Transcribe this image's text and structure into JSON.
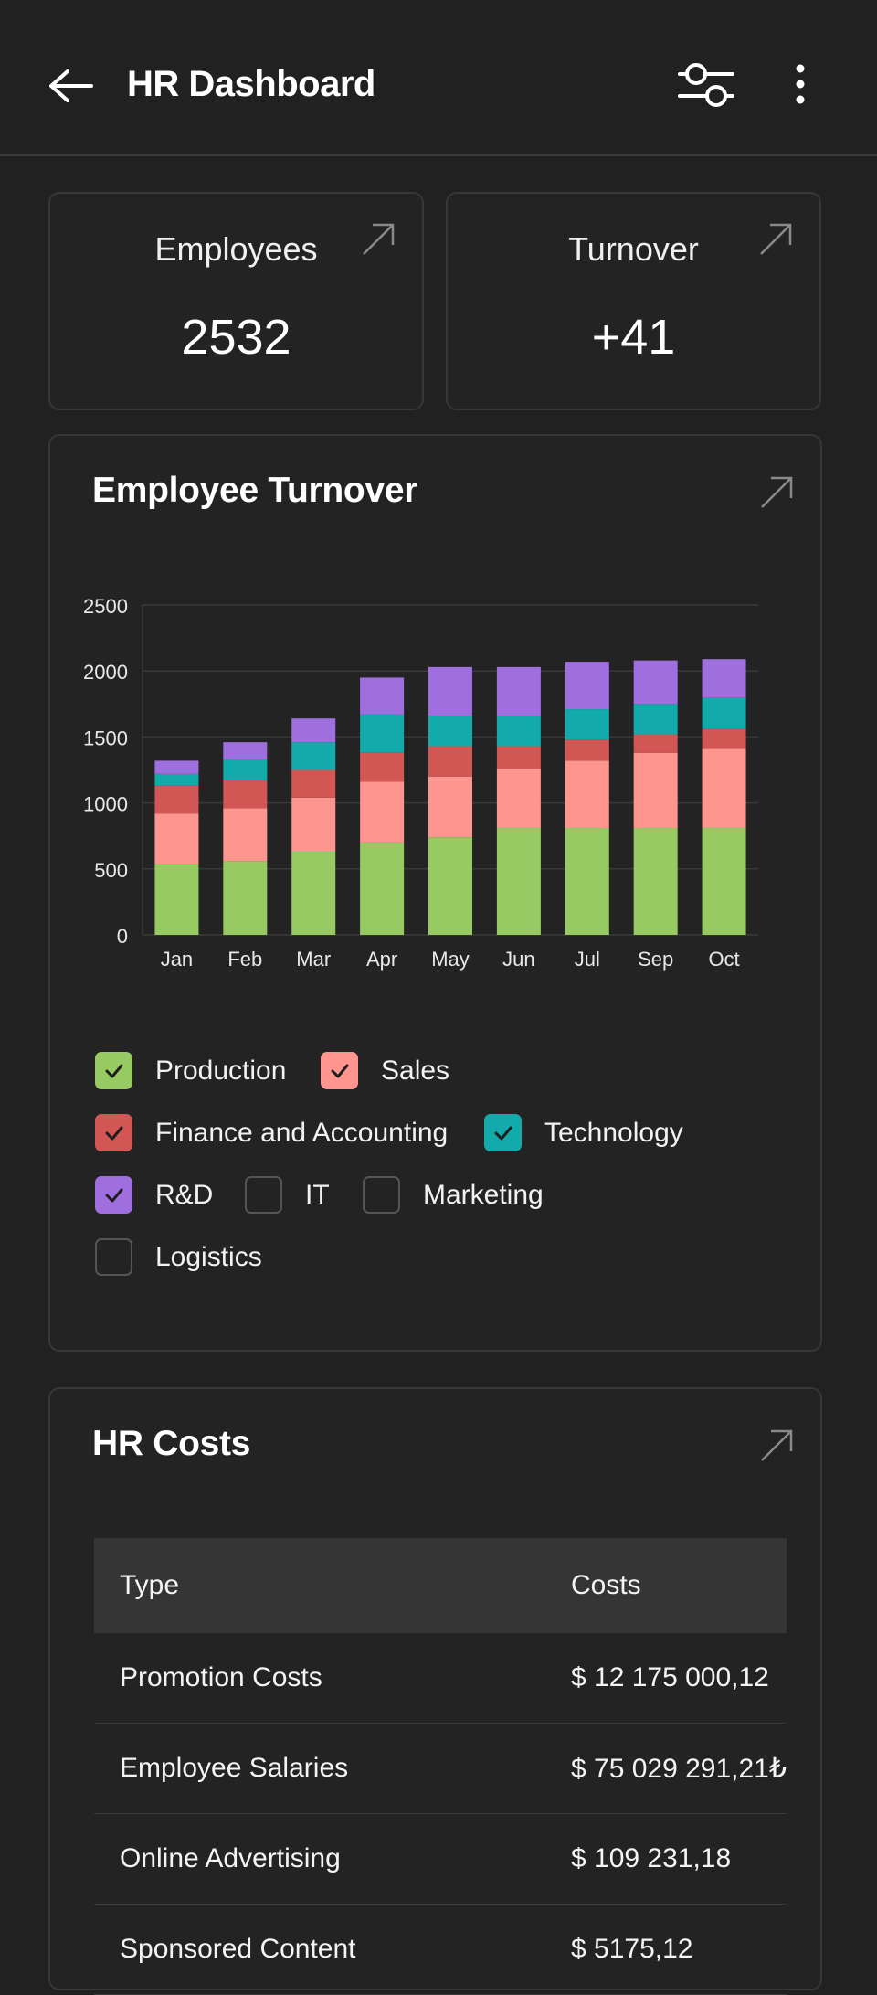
{
  "header": {
    "title": "HR Dashboard",
    "back_icon": "arrow-left-icon",
    "filter_icon": "sliders-icon",
    "more_icon": "more-vertical-icon"
  },
  "stats": [
    {
      "label": "Employees",
      "value": "2532"
    },
    {
      "label": "Turnover",
      "value": "+41"
    }
  ],
  "turnover_chart": {
    "title": "Employee Turnover"
  },
  "chart_data": {
    "type": "bar",
    "stacked": true,
    "title": "Employee Turnover",
    "categories": [
      "Jan",
      "Feb",
      "Mar",
      "Apr",
      "May",
      "Jun",
      "Jul",
      "Sep",
      "Oct"
    ],
    "ylim": [
      0,
      2500
    ],
    "yticks": [
      0,
      500,
      1000,
      1500,
      2000,
      2500
    ],
    "grid": true,
    "series": [
      {
        "name": "Production",
        "color": "#97ca62",
        "values": [
          540,
          560,
          630,
          700,
          740,
          810,
          810,
          810,
          810
        ]
      },
      {
        "name": "Sales",
        "color": "#ff958f",
        "values": [
          380,
          400,
          410,
          460,
          460,
          450,
          510,
          570,
          600
        ]
      },
      {
        "name": "Finance and Accounting",
        "color": "#d25654",
        "values": [
          210,
          210,
          210,
          220,
          230,
          170,
          160,
          140,
          150
        ]
      },
      {
        "name": "Technology",
        "color": "#13aaac",
        "values": [
          90,
          160,
          210,
          290,
          230,
          230,
          230,
          230,
          240
        ]
      },
      {
        "name": "R&D",
        "color": "#a06fdf",
        "values": [
          100,
          130,
          180,
          280,
          370,
          370,
          360,
          330,
          290
        ]
      }
    ]
  },
  "legend": {
    "items": [
      {
        "label": "Production",
        "checked": true,
        "color": "#97ca62"
      },
      {
        "label": "Sales",
        "checked": true,
        "color": "#ff958f"
      },
      {
        "label": "Finance and Accounting",
        "checked": true,
        "color": "#d25654"
      },
      {
        "label": "Technology",
        "checked": true,
        "color": "#13aaac"
      },
      {
        "label": "R&D",
        "checked": true,
        "color": "#a06fdf"
      },
      {
        "label": "IT",
        "checked": false,
        "color": ""
      },
      {
        "label": "Marketing",
        "checked": false,
        "color": ""
      },
      {
        "label": "Logistics",
        "checked": false,
        "color": ""
      }
    ]
  },
  "costs": {
    "title": "HR Costs",
    "columns": [
      "Type",
      "Costs"
    ],
    "rows": [
      [
        "Promotion Costs",
        "$ 12 175 000,12"
      ],
      [
        "Employee Salaries",
        "$ 75 029 291,21₺"
      ],
      [
        "Online Advertising",
        "$ 109 231,18"
      ],
      [
        "Sponsored Content",
        "$ 5175,12"
      ]
    ]
  }
}
